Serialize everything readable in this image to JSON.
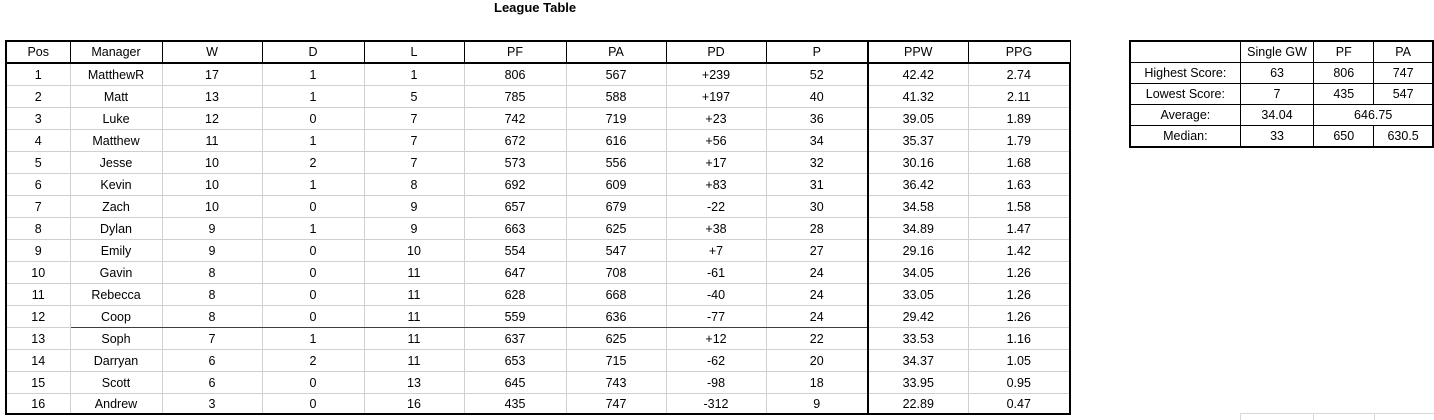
{
  "title": "League Table",
  "league": {
    "headers": [
      "Pos",
      "Manager",
      "W",
      "D",
      "L",
      "PF",
      "PA",
      "PD",
      "P",
      "PPW",
      "PPG"
    ],
    "rows": [
      [
        "1",
        "MatthewR",
        "17",
        "1",
        "1",
        "806",
        "567",
        "+239",
        "52",
        "42.42",
        "2.74"
      ],
      [
        "2",
        "Matt",
        "13",
        "1",
        "5",
        "785",
        "588",
        "+197",
        "40",
        "41.32",
        "2.11"
      ],
      [
        "3",
        "Luke",
        "12",
        "0",
        "7",
        "742",
        "719",
        "+23",
        "36",
        "39.05",
        "1.89"
      ],
      [
        "4",
        "Matthew",
        "11",
        "1",
        "7",
        "672",
        "616",
        "+56",
        "34",
        "35.37",
        "1.79"
      ],
      [
        "5",
        "Jesse",
        "10",
        "2",
        "7",
        "573",
        "556",
        "+17",
        "32",
        "30.16",
        "1.68"
      ],
      [
        "6",
        "Kevin",
        "10",
        "1",
        "8",
        "692",
        "609",
        "+83",
        "31",
        "36.42",
        "1.63"
      ],
      [
        "7",
        "Zach",
        "10",
        "0",
        "9",
        "657",
        "679",
        "-22",
        "30",
        "34.58",
        "1.58"
      ],
      [
        "8",
        "Dylan",
        "9",
        "1",
        "9",
        "663",
        "625",
        "+38",
        "28",
        "34.89",
        "1.47"
      ],
      [
        "9",
        "Emily",
        "9",
        "0",
        "10",
        "554",
        "547",
        "+7",
        "27",
        "29.16",
        "1.42"
      ],
      [
        "10",
        "Gavin",
        "8",
        "0",
        "11",
        "647",
        "708",
        "-61",
        "24",
        "34.05",
        "1.26"
      ],
      [
        "11",
        "Rebecca",
        "8",
        "0",
        "11",
        "628",
        "668",
        "-40",
        "24",
        "33.05",
        "1.26"
      ],
      [
        "12",
        "Coop",
        "8",
        "0",
        "11",
        "559",
        "636",
        "-77",
        "24",
        "29.42",
        "1.26"
      ],
      [
        "13",
        "Soph",
        "7",
        "1",
        "11",
        "637",
        "625",
        "+12",
        "22",
        "33.53",
        "1.16"
      ],
      [
        "14",
        "Darryan",
        "6",
        "2",
        "11",
        "653",
        "715",
        "-62",
        "20",
        "34.37",
        "1.05"
      ],
      [
        "15",
        "Scott",
        "6",
        "0",
        "13",
        "645",
        "743",
        "-98",
        "18",
        "33.95",
        "0.95"
      ],
      [
        "16",
        "Andrew",
        "3",
        "0",
        "16",
        "435",
        "747",
        "-312",
        "9",
        "22.89",
        "0.47"
      ]
    ],
    "cutoff_color": "#d00000"
  },
  "stats": {
    "headers": [
      "Single GW",
      "PF",
      "PA"
    ],
    "highest": {
      "label": "Highest Score:",
      "gw": "63",
      "pf": "806",
      "pa": "747"
    },
    "lowest": {
      "label": "Lowest Score:",
      "gw": "7",
      "pf": "435",
      "pa": "547"
    },
    "average": {
      "label": "Average:",
      "gw": "34.04",
      "pfpa": "646.75"
    },
    "median": {
      "label": "Median:",
      "gw": "33",
      "pf": "650",
      "pa": "630.5"
    }
  }
}
